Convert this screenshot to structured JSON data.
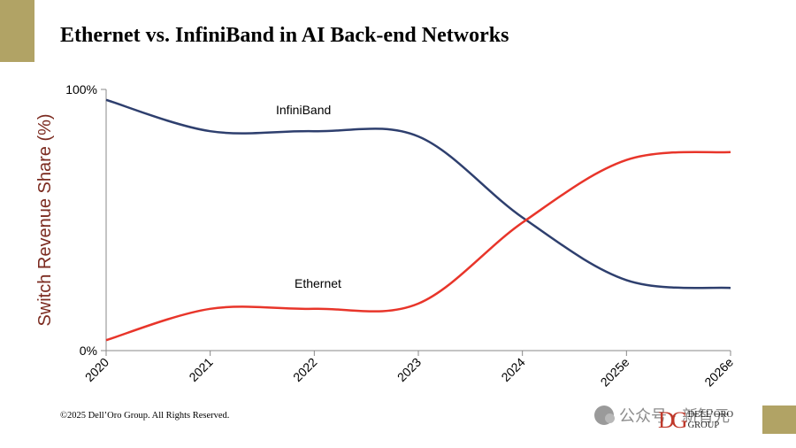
{
  "slide": {
    "title": "Ethernet vs. InfiniBand in AI Back-end Networks",
    "copyright": "©2025 Dell’Oro Group. All Rights Reserved.",
    "accent_color": "#b1a365",
    "watermark": {
      "icon": "wechat-icon",
      "text": "公众号 · 新智元"
    },
    "brand": {
      "logo_mark": "DG",
      "line1": "DELL’ORO",
      "line2": "GROUP"
    }
  },
  "chart_data": {
    "type": "line",
    "title": "",
    "xlabel": "",
    "ylabel": "Switch Revenue Share (%)",
    "categories": [
      "2020",
      "2021",
      "2022",
      "2023",
      "2024",
      "2025e",
      "2026e"
    ],
    "y_tick_labels": [
      "100%",
      "0%"
    ],
    "ylim": [
      0,
      100
    ],
    "grid": false,
    "series": [
      {
        "name": "InfiniBand",
        "color": "#2e3f6e",
        "values": [
          96,
          84,
          84,
          82,
          51,
          27,
          24
        ]
      },
      {
        "name": "Ethernet",
        "color": "#e8352a",
        "values": [
          4,
          16,
          16,
          18,
          49,
          73,
          76
        ]
      }
    ]
  }
}
